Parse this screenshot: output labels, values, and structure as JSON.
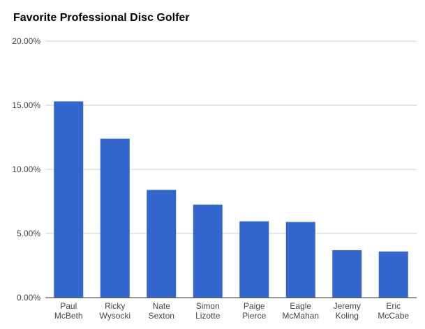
{
  "chart_data": {
    "type": "bar",
    "title": "Favorite Professional Disc Golfer",
    "xlabel": "",
    "ylabel": "",
    "ylim": [
      0,
      20
    ],
    "yticks": [
      "0.00%",
      "5.00%",
      "10.00%",
      "15.00%",
      "20.00%"
    ],
    "grid": true,
    "legend": "none",
    "bar_color": "#3366cc",
    "categories": [
      [
        "Paul",
        "McBeth"
      ],
      [
        "Ricky",
        "Wysocki"
      ],
      [
        "Nate",
        "Sexton"
      ],
      [
        "Simon",
        "Lizotte"
      ],
      [
        "Paige",
        "Pierce"
      ],
      [
        "Eagle",
        "McMahan"
      ],
      [
        "Jeremy",
        "Koling"
      ],
      [
        "Eric",
        "McCabe"
      ]
    ],
    "values": [
      15.3,
      12.4,
      8.4,
      7.25,
      5.95,
      5.9,
      3.7,
      3.6
    ]
  }
}
